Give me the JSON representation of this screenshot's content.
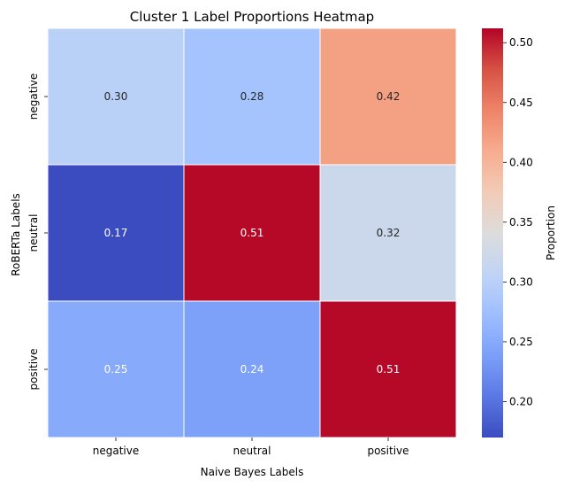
{
  "chart_data": {
    "type": "heatmap",
    "title": "Cluster 1 Label Proportions Heatmap",
    "xlabel": "Naive Bayes Labels",
    "ylabel": "RoBERTa Labels",
    "x_categories": [
      "negative",
      "neutral",
      "positive"
    ],
    "y_categories": [
      "negative",
      "neutral",
      "positive"
    ],
    "values": [
      [
        0.3,
        0.28,
        0.42
      ],
      [
        0.17,
        0.51,
        0.32
      ],
      [
        0.25,
        0.24,
        0.51
      ]
    ],
    "value_labels": [
      [
        "0.30",
        "0.28",
        "0.42"
      ],
      [
        "0.17",
        "0.51",
        "0.32"
      ],
      [
        "0.25",
        "0.24",
        "0.51"
      ]
    ],
    "colormap": "coolwarm",
    "vmin": 0.17,
    "vmax": 0.512,
    "colorbar": {
      "label": "Proportion",
      "ticks": [
        0.2,
        0.25,
        0.3,
        0.35,
        0.4,
        0.45,
        0.5
      ],
      "tick_labels": [
        "0.20",
        "0.25",
        "0.30",
        "0.35",
        "0.40",
        "0.45",
        "0.50"
      ]
    },
    "colors": {
      "low": "#3b4cc0",
      "mid": "#dddcdc",
      "high": "#b40426",
      "light_text": "#ffffff",
      "dark_text": "#262626",
      "grid": "#ffffff"
    }
  }
}
